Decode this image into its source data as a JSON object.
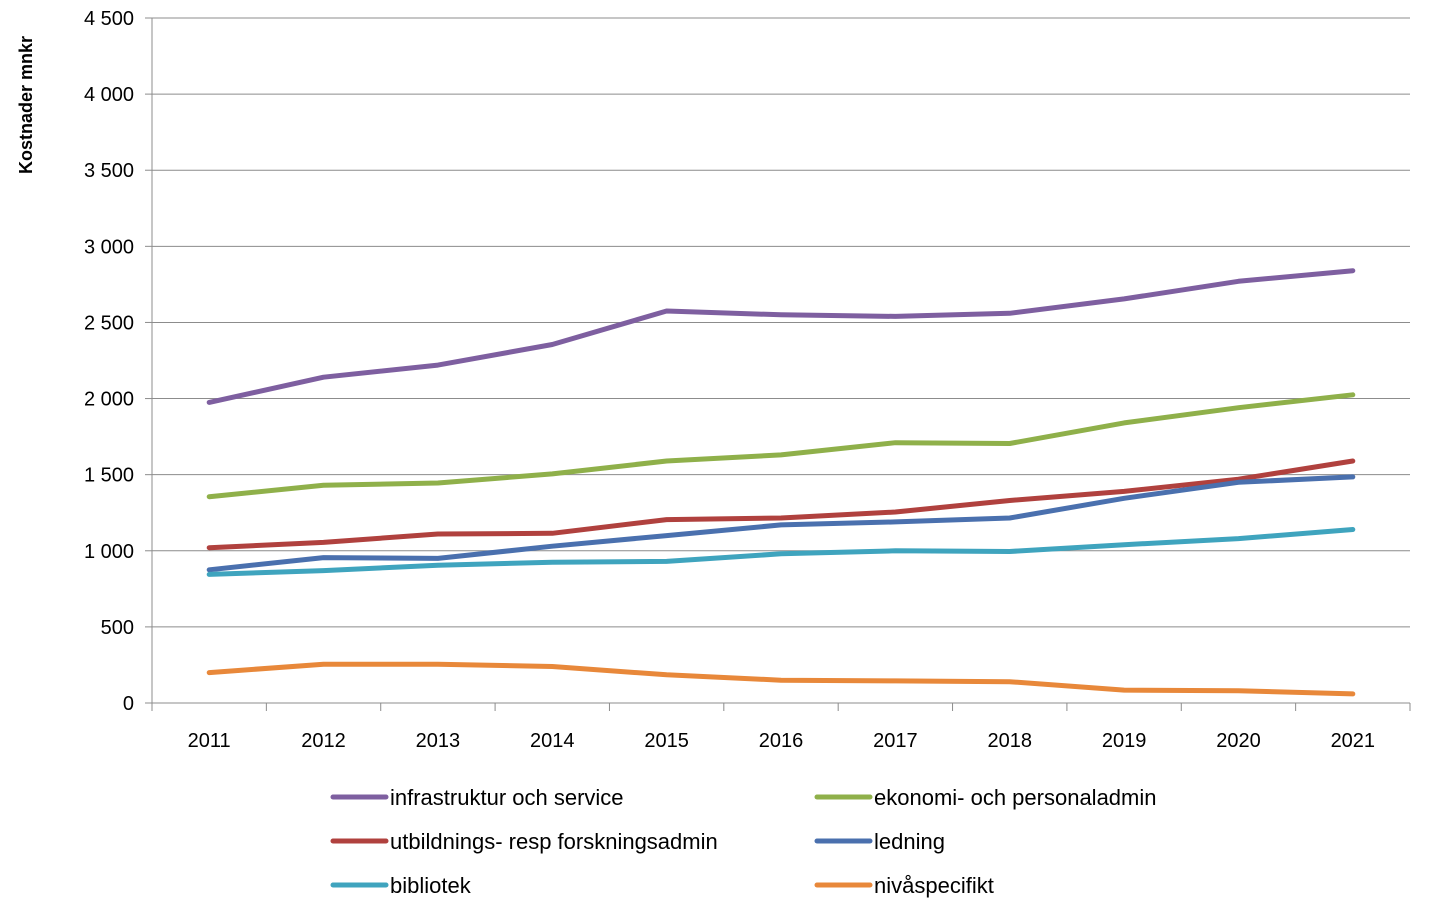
{
  "chart_data": {
    "type": "line",
    "ylabel": "Kostnader mnkr",
    "xlabel": "",
    "ylim": [
      0,
      4500
    ],
    "yticks": [
      0,
      500,
      1000,
      1500,
      2000,
      2500,
      3000,
      3500,
      4000,
      4500
    ],
    "ytick_labels": [
      "0",
      "500",
      "1 000",
      "1 500",
      "2 000",
      "2 500",
      "3 000",
      "3 500",
      "4 000",
      "4 500"
    ],
    "categories": [
      "2011",
      "2012",
      "2013",
      "2014",
      "2015",
      "2016",
      "2017",
      "2018",
      "2019",
      "2020",
      "2021"
    ],
    "grid": "horizontal",
    "legend_position": "bottom",
    "series": [
      {
        "name": "infrastruktur och service",
        "color": "#7E5FA0",
        "values": [
          1975,
          2140,
          2220,
          2355,
          2575,
          2550,
          2540,
          2560,
          2655,
          2770,
          2840
        ]
      },
      {
        "name": "ekonomi- och personaladmin",
        "color": "#8FB04A",
        "values": [
          1355,
          1430,
          1445,
          1505,
          1590,
          1630,
          1710,
          1705,
          1840,
          1940,
          2025
        ]
      },
      {
        "name": "utbildnings- resp forskningsadmin",
        "color": "#B0413E",
        "values": [
          1020,
          1055,
          1110,
          1115,
          1205,
          1215,
          1255,
          1330,
          1390,
          1470,
          1590
        ]
      },
      {
        "name": "ledning",
        "color": "#4A70AE",
        "values": [
          875,
          955,
          950,
          1030,
          1100,
          1170,
          1190,
          1215,
          1345,
          1450,
          1485
        ]
      },
      {
        "name": "bibliotek",
        "color": "#3FA4BE",
        "values": [
          845,
          870,
          905,
          925,
          930,
          980,
          1000,
          995,
          1040,
          1080,
          1140
        ]
      },
      {
        "name": "nivåspecifikt",
        "color": "#E8883A",
        "values": [
          200,
          255,
          255,
          240,
          185,
          150,
          145,
          140,
          85,
          80,
          60
        ]
      }
    ]
  }
}
